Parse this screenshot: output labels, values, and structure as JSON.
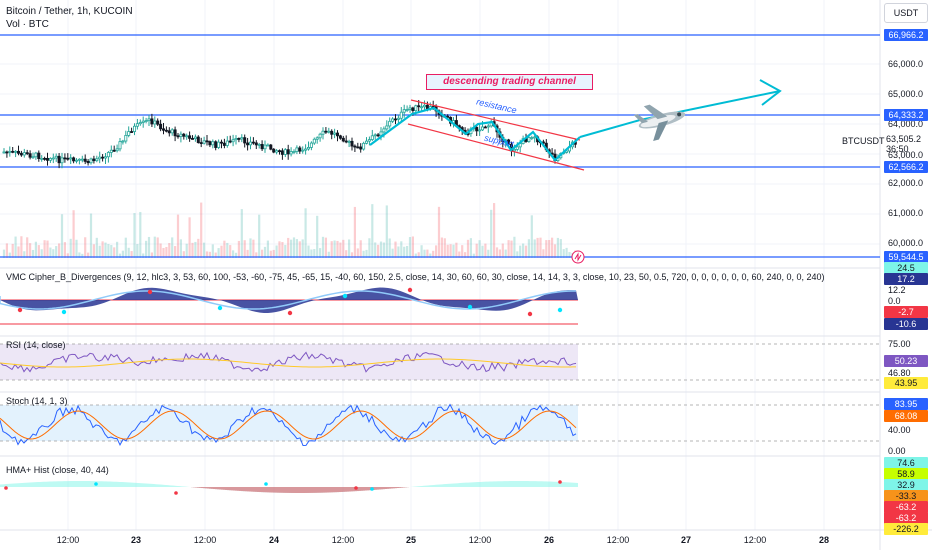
{
  "header": {
    "title": "Bitcoin / Tether, 1h, KUCOIN",
    "volume_label": "Vol · BTC"
  },
  "currency_button": "USDT",
  "price_axis": {
    "ticks": [
      "66,000.0",
      "65,000.0",
      "64,000.0",
      "63,000.0",
      "62,000.0",
      "61,000.0",
      "60,000.0"
    ],
    "symbol_label": "BTCUSDT"
  },
  "price_tags": {
    "top_line": "66,966.2",
    "resistance_line": "64,333.2",
    "current_price": "63,505.2",
    "countdown": "36:50",
    "support_line": "62,566.2",
    "bottom_line": "59,544.5"
  },
  "annotations": {
    "channel_title": "descending trading channel",
    "resistance": "resistance",
    "support": "support"
  },
  "indicators": {
    "vmc": {
      "label": "VMC Cipher_B_Divergences (9, 12, hlc3, 3, 53, 60, 100, -53, -60, -75, 45, -65, 15, -40, 60, 150, 2.5, close, 14, 30, 60, 60, 30, close, 14, 14, 3, 3, close, 10, 23, 50, 0.5, 720, 0, 0, 0, 0, 0, 0, 60, 240, 0, 0, 240)",
      "values": [
        "24.5",
        "17.2",
        "12.2",
        "0.0",
        "-2.7",
        "-10.6"
      ]
    },
    "rsi": {
      "label": "RSI (14, close)",
      "values": [
        "75.00",
        "50.23",
        "46.80",
        "43.95"
      ]
    },
    "stoch": {
      "label": "Stoch (14, 1, 3)",
      "values": [
        "83.95",
        "68.08",
        "40.00",
        "0.00"
      ]
    },
    "hma": {
      "label": "HMA+ Hist (close, 40, 44)",
      "values": [
        "74.6",
        "58.9",
        "32.9",
        "-33.3",
        "-63.2",
        "-63.2",
        "-226.2"
      ]
    }
  },
  "time_axis": [
    "12:00",
    "23",
    "12:00",
    "24",
    "12:00",
    "25",
    "12:00",
    "26",
    "12:00",
    "27",
    "12:00",
    "28"
  ],
  "colors": {
    "up": "#26a69a",
    "down": "#131722",
    "level_line": "#2962ff",
    "channel": "#f23645",
    "path": "#00bcd4",
    "rsi_bg": "#ede7f6",
    "stoch_bg": "#e3f2fd"
  }
}
